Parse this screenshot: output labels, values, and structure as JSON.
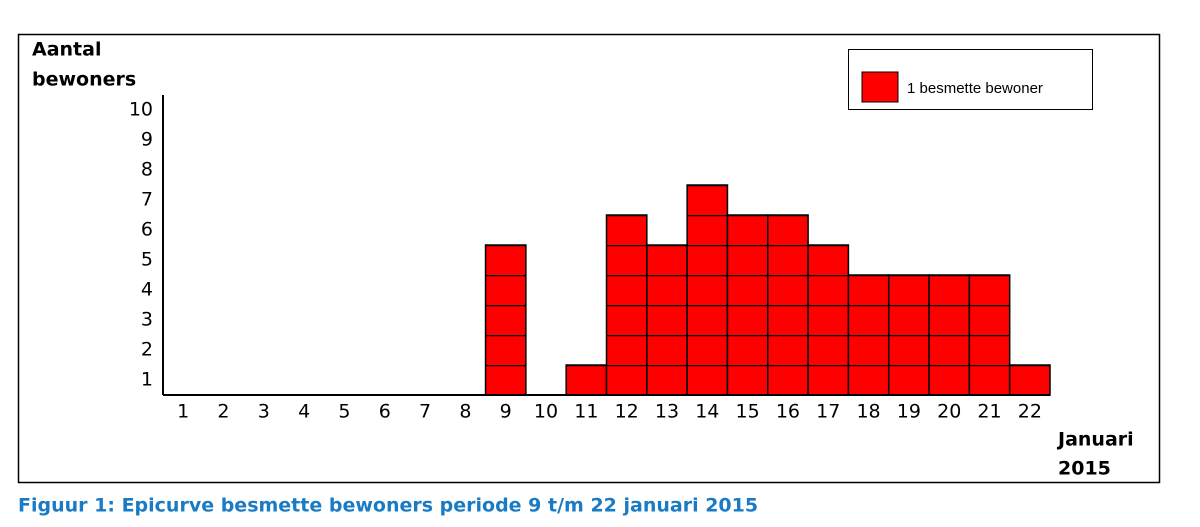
{
  "chart_data": {
    "type": "bar",
    "title": "Figuur 1: Epicurve besmette bewoners periode 9 t/m 22 januari 2015",
    "ylabel": [
      "Aantal",
      "bewoners"
    ],
    "xlabel": [
      "Januari",
      "2015"
    ],
    "categories": [
      "1",
      "2",
      "3",
      "4",
      "5",
      "6",
      "7",
      "8",
      "9",
      "10",
      "11",
      "12",
      "13",
      "14",
      "15",
      "16",
      "17",
      "18",
      "19",
      "20",
      "21",
      "22"
    ],
    "series": [
      {
        "name": "1 besmette bewoner",
        "color": "#ff0000",
        "values": [
          0,
          0,
          0,
          0,
          0,
          0,
          0,
          0,
          5,
          0,
          1,
          6,
          5,
          7,
          6,
          6,
          5,
          4,
          4,
          4,
          4,
          1
        ]
      }
    ],
    "ylim": [
      0,
      10
    ],
    "yticks": [
      1,
      2,
      3,
      4,
      5,
      6,
      7,
      8,
      9,
      10
    ],
    "legend": "top-right"
  }
}
